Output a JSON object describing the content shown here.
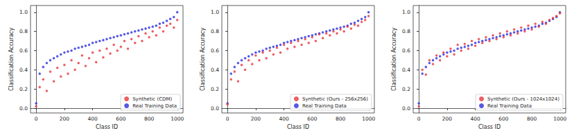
{
  "chart_data": [
    {
      "type": "scatter",
      "xlabel": "Class ID",
      "ylabel": "Classification Accuracy",
      "x": [
        0,
        25,
        50,
        75,
        100,
        125,
        150,
        175,
        200,
        225,
        250,
        275,
        300,
        325,
        350,
        375,
        400,
        425,
        450,
        475,
        500,
        525,
        550,
        575,
        600,
        625,
        650,
        675,
        700,
        725,
        750,
        775,
        800,
        825,
        850,
        875,
        900,
        925,
        950,
        975,
        999
      ],
      "series": [
        {
          "name": "Synthetic (CDM)",
          "color": "#e8373b",
          "values": [
            0.02,
            0.22,
            0.3,
            0.18,
            0.38,
            0.28,
            0.42,
            0.33,
            0.45,
            0.36,
            0.5,
            0.4,
            0.47,
            0.55,
            0.44,
            0.52,
            0.58,
            0.48,
            0.6,
            0.53,
            0.62,
            0.57,
            0.66,
            0.6,
            0.64,
            0.7,
            0.62,
            0.72,
            0.68,
            0.75,
            0.7,
            0.78,
            0.74,
            0.8,
            0.76,
            0.84,
            0.8,
            0.86,
            0.88,
            0.84,
            0.92
          ]
        },
        {
          "name": "Real Training Data",
          "color": "#2a2ee0",
          "values": [
            0.05,
            0.36,
            0.43,
            0.47,
            0.5,
            0.52,
            0.54,
            0.56,
            0.58,
            0.59,
            0.6,
            0.62,
            0.63,
            0.64,
            0.65,
            0.66,
            0.68,
            0.69,
            0.7,
            0.71,
            0.72,
            0.73,
            0.74,
            0.75,
            0.76,
            0.77,
            0.78,
            0.79,
            0.8,
            0.81,
            0.82,
            0.83,
            0.84,
            0.85,
            0.86,
            0.88,
            0.89,
            0.91,
            0.93,
            0.95,
            1.0
          ]
        }
      ],
      "xlim": [
        -40,
        1040
      ],
      "xticks": [
        0,
        200,
        400,
        600,
        800,
        1000
      ],
      "ylim": [
        -0.05,
        1.07
      ],
      "yticks": [
        {
          "value": 0,
          "label": "0.0"
        },
        {
          "value": 0.2,
          "label": "0.2"
        },
        {
          "value": 0.4,
          "label": "0.4"
        },
        {
          "value": 0.6,
          "label": "0.6"
        },
        {
          "value": 0.8,
          "label": "0.8"
        },
        {
          "value": 1,
          "label": "1.0"
        }
      ],
      "legend": "lower right",
      "grid": false,
      "marker": "circle"
    },
    {
      "type": "scatter",
      "xlabel": "Class ID",
      "ylabel": "Classification Accuracy",
      "x": [
        0,
        25,
        50,
        75,
        100,
        125,
        150,
        175,
        200,
        225,
        250,
        275,
        300,
        325,
        350,
        375,
        400,
        425,
        450,
        475,
        500,
        525,
        550,
        575,
        600,
        625,
        650,
        675,
        700,
        725,
        750,
        775,
        800,
        825,
        850,
        875,
        900,
        925,
        950,
        975,
        999
      ],
      "series": [
        {
          "name": "Synthetic (Ours - 256x256)",
          "color": "#e8373b",
          "values": [
            0.04,
            0.3,
            0.38,
            0.28,
            0.45,
            0.4,
            0.5,
            0.46,
            0.55,
            0.5,
            0.58,
            0.52,
            0.6,
            0.56,
            0.63,
            0.58,
            0.66,
            0.62,
            0.68,
            0.64,
            0.7,
            0.66,
            0.72,
            0.68,
            0.74,
            0.7,
            0.77,
            0.73,
            0.78,
            0.76,
            0.8,
            0.78,
            0.82,
            0.8,
            0.85,
            0.83,
            0.87,
            0.86,
            0.9,
            0.92,
            0.96
          ]
        },
        {
          "name": "Real Training Data",
          "color": "#2a2ee0",
          "values": [
            0.05,
            0.36,
            0.43,
            0.47,
            0.5,
            0.52,
            0.54,
            0.56,
            0.58,
            0.59,
            0.6,
            0.62,
            0.63,
            0.64,
            0.65,
            0.66,
            0.68,
            0.69,
            0.7,
            0.71,
            0.72,
            0.73,
            0.74,
            0.75,
            0.76,
            0.77,
            0.78,
            0.79,
            0.8,
            0.81,
            0.82,
            0.83,
            0.84,
            0.85,
            0.86,
            0.88,
            0.89,
            0.91,
            0.93,
            0.95,
            1.0
          ]
        }
      ],
      "xlim": [
        -40,
        1040
      ],
      "xticks": [
        0,
        200,
        400,
        600,
        800,
        1000
      ],
      "ylim": [
        -0.05,
        1.07
      ],
      "yticks": [
        {
          "value": 0,
          "label": "0.0"
        },
        {
          "value": 0.2,
          "label": "0.2"
        },
        {
          "value": 0.4,
          "label": "0.4"
        },
        {
          "value": 0.6,
          "label": "0.6"
        },
        {
          "value": 0.8,
          "label": "0.8"
        },
        {
          "value": 1,
          "label": "1.0"
        }
      ],
      "legend": "lower right",
      "grid": false,
      "marker": "circle"
    },
    {
      "type": "scatter",
      "xlabel": "Class ID",
      "ylabel": "Classification Accuracy",
      "x": [
        0,
        25,
        50,
        75,
        100,
        125,
        150,
        175,
        200,
        225,
        250,
        275,
        300,
        325,
        350,
        375,
        400,
        425,
        450,
        475,
        500,
        525,
        550,
        575,
        600,
        625,
        650,
        675,
        700,
        725,
        750,
        775,
        800,
        825,
        850,
        875,
        900,
        925,
        950,
        975,
        999
      ],
      "series": [
        {
          "name": "Synthetic (Ours - 1024x1024)",
          "color": "#e8373b",
          "values": [
            0.02,
            0.4,
            0.35,
            0.5,
            0.46,
            0.55,
            0.5,
            0.58,
            0.54,
            0.62,
            0.56,
            0.66,
            0.6,
            0.67,
            0.62,
            0.7,
            0.65,
            0.72,
            0.68,
            0.74,
            0.7,
            0.76,
            0.72,
            0.78,
            0.74,
            0.8,
            0.76,
            0.82,
            0.78,
            0.84,
            0.8,
            0.86,
            0.82,
            0.88,
            0.85,
            0.9,
            0.88,
            0.92,
            0.94,
            0.96,
            0.99
          ]
        },
        {
          "name": "Real Training Data",
          "color": "#2a2ee0",
          "values": [
            0.05,
            0.36,
            0.43,
            0.47,
            0.5,
            0.52,
            0.54,
            0.56,
            0.58,
            0.59,
            0.6,
            0.62,
            0.63,
            0.64,
            0.65,
            0.66,
            0.68,
            0.69,
            0.7,
            0.71,
            0.72,
            0.73,
            0.74,
            0.75,
            0.76,
            0.77,
            0.78,
            0.79,
            0.8,
            0.81,
            0.82,
            0.83,
            0.84,
            0.85,
            0.86,
            0.88,
            0.89,
            0.91,
            0.93,
            0.95,
            1.0
          ]
        }
      ],
      "xlim": [
        -40,
        1040
      ],
      "xticks": [
        0,
        200,
        400,
        600,
        800,
        1000
      ],
      "ylim": [
        -0.05,
        1.07
      ],
      "yticks": [
        {
          "value": 0,
          "label": "0.0"
        },
        {
          "value": 0.2,
          "label": "0.2"
        },
        {
          "value": 0.4,
          "label": "0.4"
        },
        {
          "value": 0.6,
          "label": "0.6"
        },
        {
          "value": 0.8,
          "label": "0.8"
        },
        {
          "value": 1,
          "label": "1.0"
        }
      ],
      "legend": "lower right",
      "grid": false,
      "marker": "circle"
    }
  ]
}
